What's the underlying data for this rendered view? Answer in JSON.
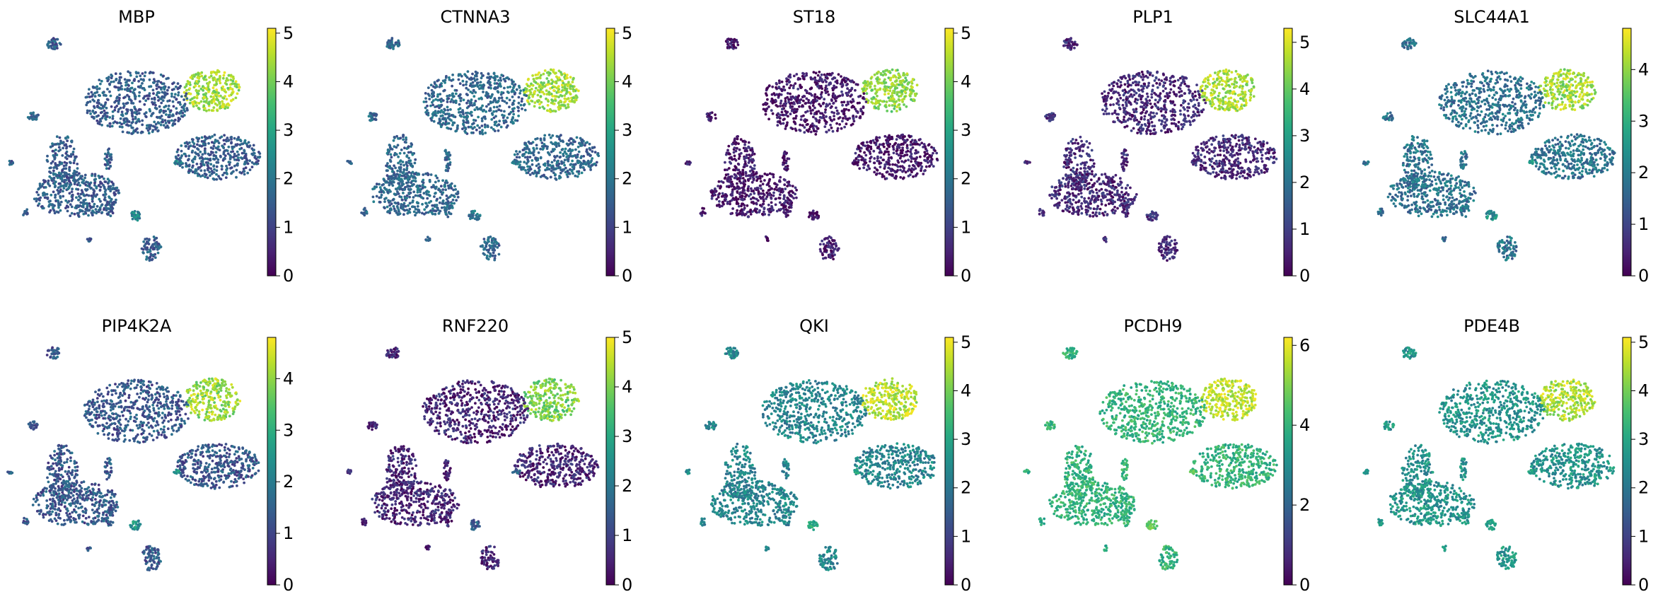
{
  "chart_data": [
    {
      "type": "scatter",
      "title": "MBP",
      "colorbar": {
        "min": 0,
        "max": 5.1,
        "ticks": [
          0,
          1,
          2,
          3,
          4,
          5
        ]
      },
      "highlight": {
        "main": 4.4,
        "oligo_small": 2.3,
        "other": 1.5
      }
    },
    {
      "type": "scatter",
      "title": "CTNNA3",
      "colorbar": {
        "min": 0,
        "max": 5.1,
        "ticks": [
          0,
          1,
          2,
          3,
          4,
          5
        ]
      },
      "highlight": {
        "main": 4.4,
        "oligo_small": 2.0,
        "other": 1.7
      }
    },
    {
      "type": "scatter",
      "title": "ST18",
      "colorbar": {
        "min": 0,
        "max": 5.1,
        "ticks": [
          0,
          1,
          2,
          3,
          4,
          5
        ]
      },
      "highlight": {
        "main": 4.2,
        "oligo_small": 0.1,
        "other": 0.3
      }
    },
    {
      "type": "scatter",
      "title": "PLP1",
      "colorbar": {
        "min": 0,
        "max": 5.3,
        "ticks": [
          0,
          1,
          2,
          3,
          4,
          5
        ]
      },
      "highlight": {
        "main": 4.6,
        "oligo_small": 0.8,
        "other": 0.6
      }
    },
    {
      "type": "scatter",
      "title": "SLC44A1",
      "colorbar": {
        "min": 0,
        "max": 4.8,
        "ticks": [
          0,
          1,
          2,
          3,
          4
        ]
      },
      "highlight": {
        "main": 4.1,
        "oligo_small": 2.3,
        "other": 1.8
      }
    },
    {
      "type": "scatter",
      "title": "PIP4K2A",
      "colorbar": {
        "min": 0,
        "max": 4.8,
        "ticks": [
          0,
          1,
          2,
          3,
          4
        ]
      },
      "highlight": {
        "main": 4.1,
        "oligo_small": 2.4,
        "other": 1.3
      }
    },
    {
      "type": "scatter",
      "title": "RNF220",
      "colorbar": {
        "min": 0,
        "max": 5.0,
        "ticks": [
          0,
          1,
          2,
          3,
          4,
          5
        ]
      },
      "highlight": {
        "main": 4.0,
        "oligo_small": 1.5,
        "other": 0.5
      }
    },
    {
      "type": "scatter",
      "title": "QKI",
      "colorbar": {
        "min": 0,
        "max": 5.1,
        "ticks": [
          0,
          1,
          2,
          3,
          4,
          5
        ]
      },
      "highlight": {
        "main": 4.6,
        "oligo_small": 3.0,
        "other": 2.3
      }
    },
    {
      "type": "scatter",
      "title": "PCDH9",
      "colorbar": {
        "min": 0,
        "max": 6.2,
        "ticks": [
          0,
          2,
          4,
          6
        ]
      },
      "highlight": {
        "main": 5.6,
        "oligo_small": 4.5,
        "other": 4.0
      }
    },
    {
      "type": "scatter",
      "title": "PDE4B",
      "colorbar": {
        "min": 0,
        "max": 5.1,
        "ticks": [
          0,
          1,
          2,
          3,
          4,
          5
        ]
      },
      "highlight": {
        "main": 4.5,
        "oligo_small": 3.0,
        "other": 2.6
      }
    }
  ],
  "colors": {
    "viridis_low": "#440154",
    "viridis_mid": "#21918c",
    "viridis_high": "#fde725"
  }
}
